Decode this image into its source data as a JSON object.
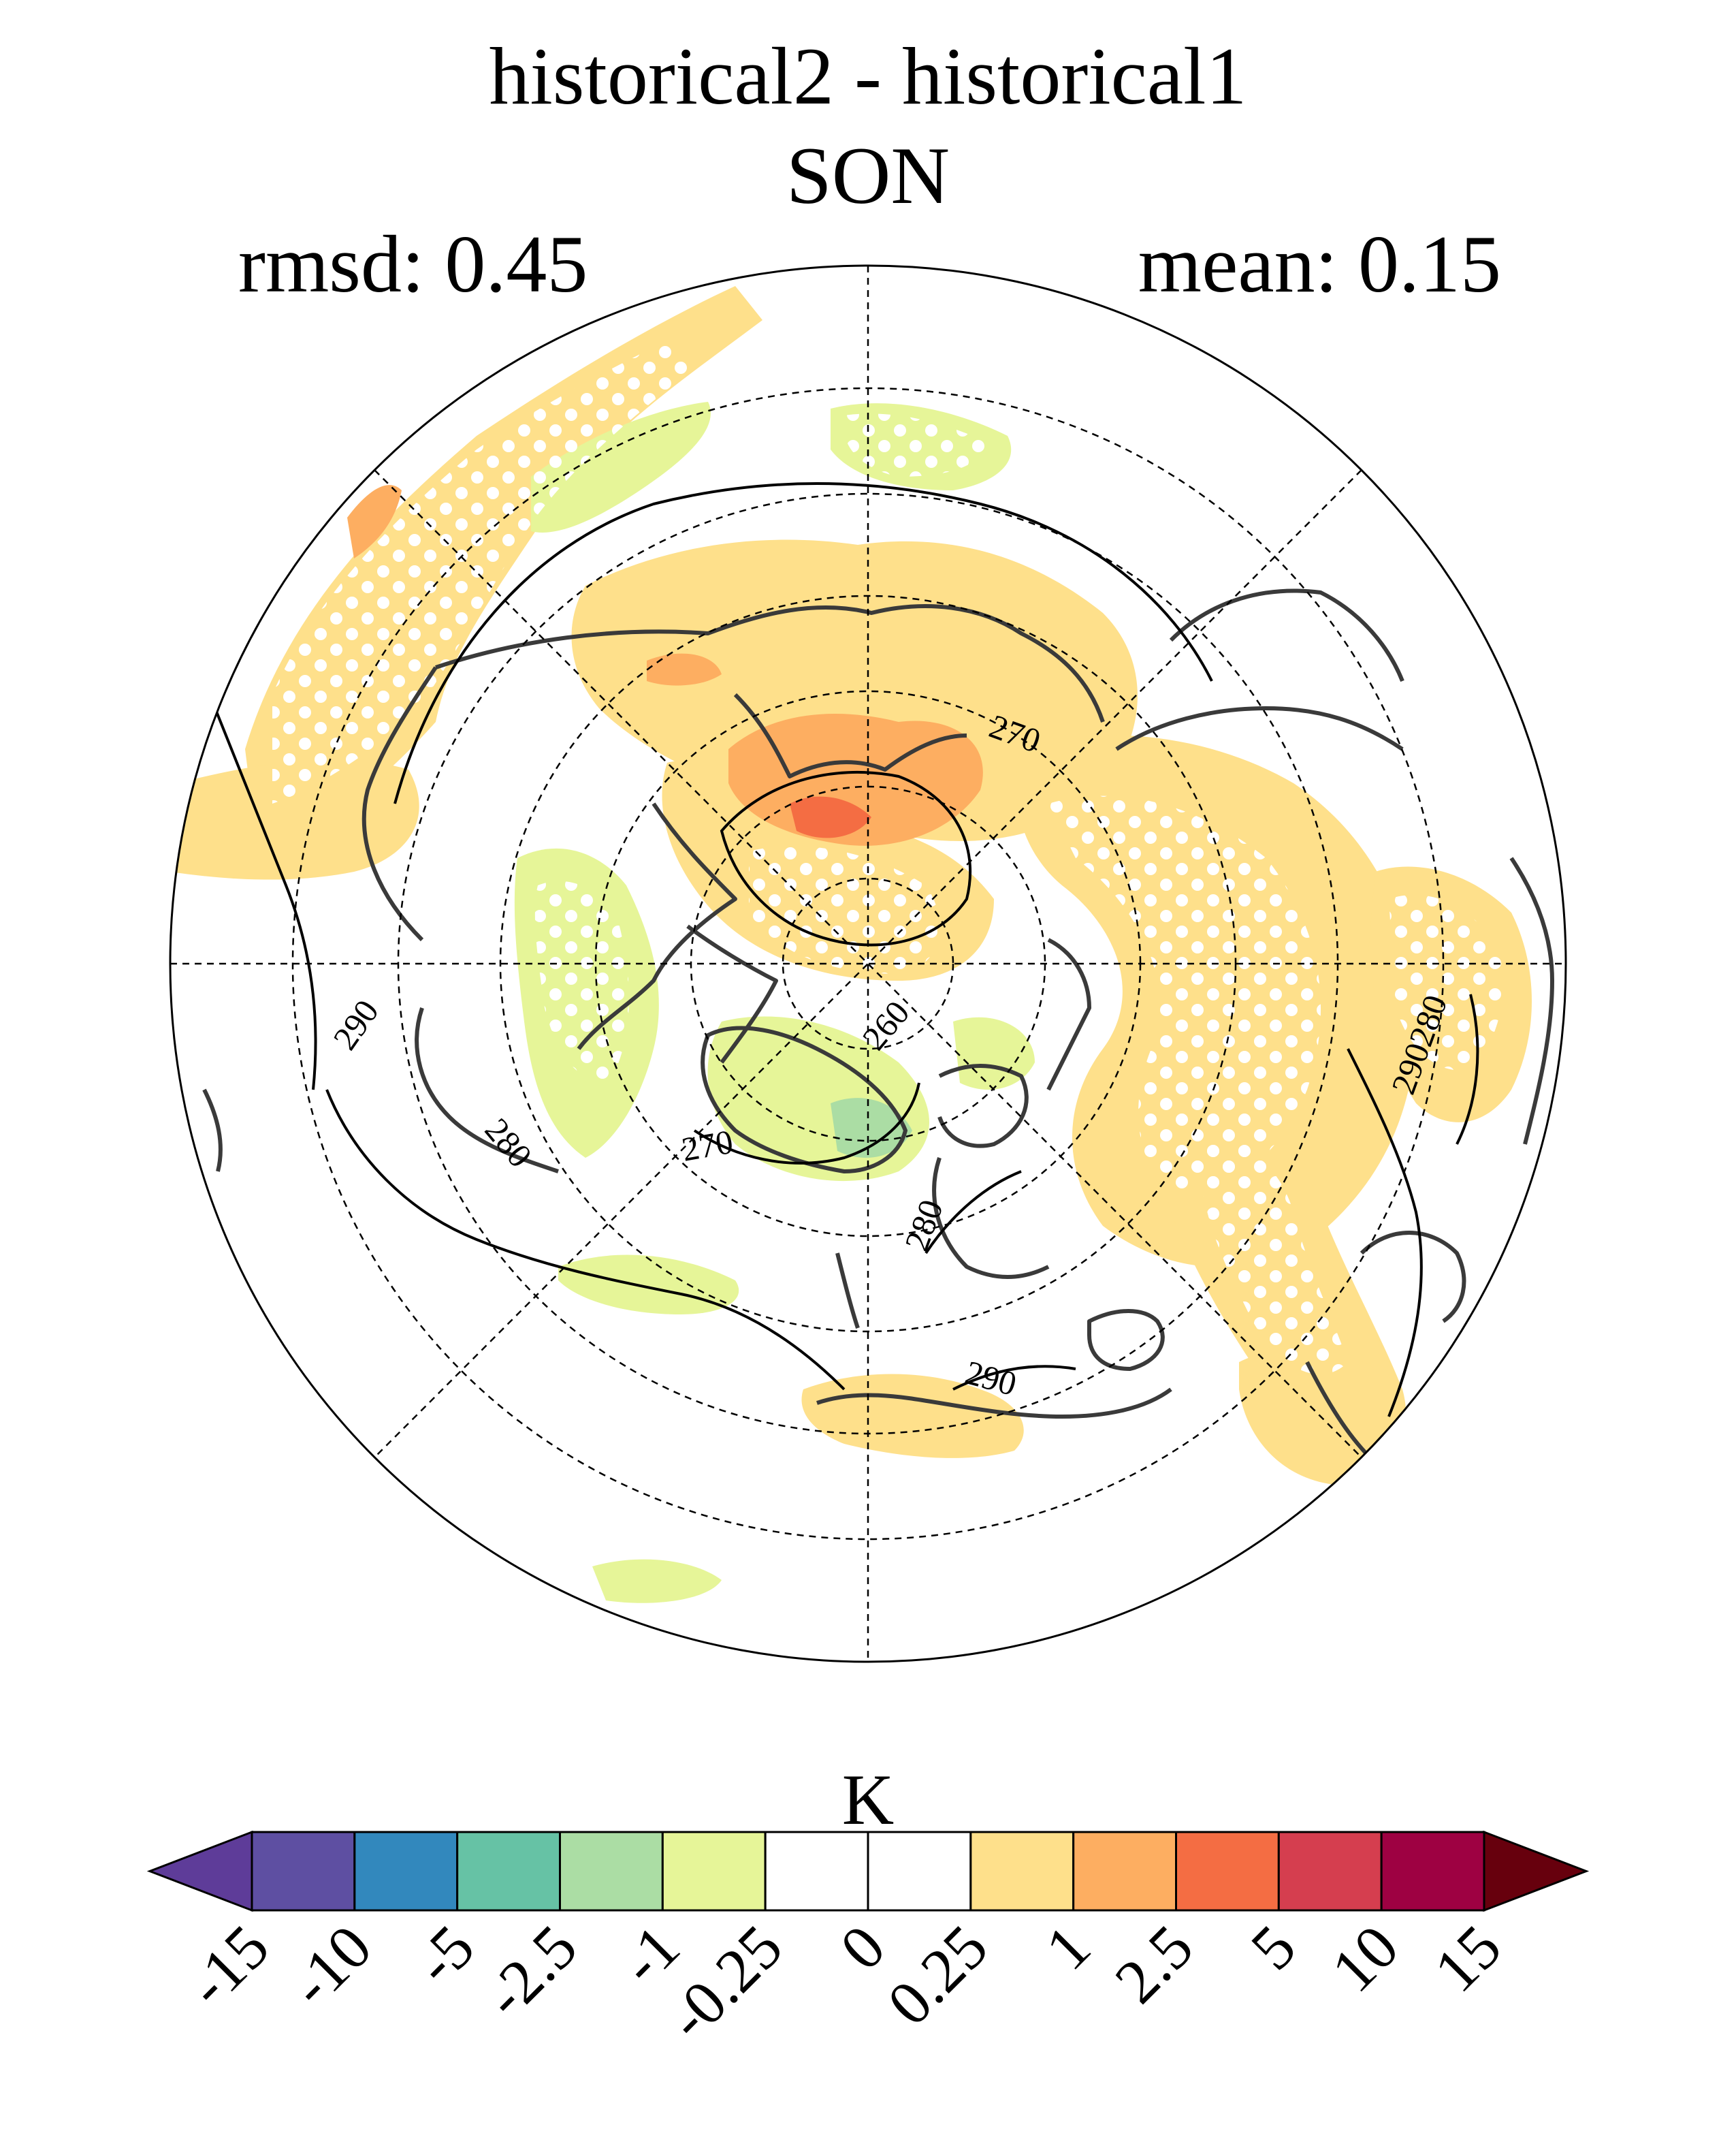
{
  "title": "historical2 - historical1",
  "season": "SON",
  "rmsd_label": "rmsd: 0.45",
  "mean_label": "mean: 0.15",
  "units": "K",
  "contour_labels": [
    "270",
    "290",
    "280",
    "260",
    "270",
    "280",
    "290",
    "290280",
    "290"
  ],
  "colorbar": {
    "ticks": [
      "-15",
      "-10",
      "-5",
      "-2.5",
      "-1",
      "-0.25",
      "0",
      "0.25",
      "1",
      "2.5",
      "5",
      "10",
      "15"
    ],
    "colors": [
      "#5e3c99",
      "#5e4fa2",
      "#3288bd",
      "#66c2a5",
      "#abdda4",
      "#e6f598",
      "#ffffff",
      "#ffffff",
      "#fee08b",
      "#fdae61",
      "#f46d43",
      "#d53e4f",
      "#9e0142",
      "#67000d"
    ]
  },
  "colors": {
    "positive_light": "#fee08b",
    "positive_mid": "#fdae61",
    "positive_strong": "#f46d43",
    "negative_light": "#e6f598",
    "negative_mid": "#abdda4",
    "negative_strong": "#66c2a5",
    "coastline": "#3a3a3a",
    "contour": "#000000"
  }
}
